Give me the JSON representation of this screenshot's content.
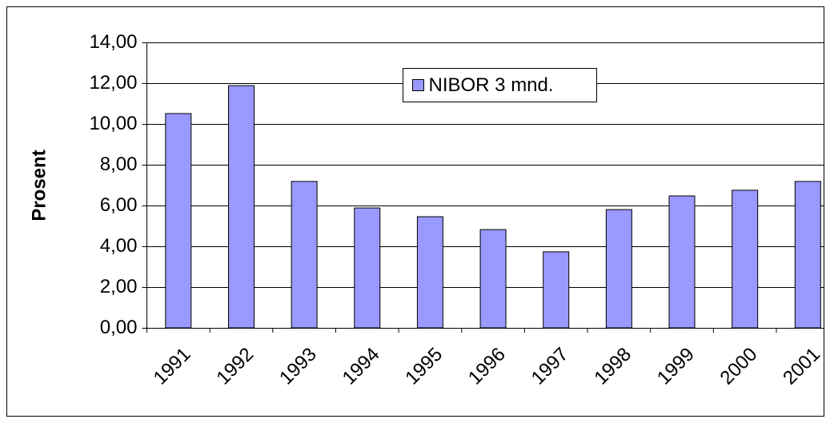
{
  "chart_data": {
    "type": "bar",
    "y_label": "Prosent",
    "categories": [
      "1991",
      "1992",
      "1993",
      "1994",
      "1995",
      "1996",
      "1997",
      "1998",
      "1999",
      "2000",
      "2001"
    ],
    "series": [
      {
        "name": "NIBOR 3 mnd.",
        "color": "#9999ff",
        "values": [
          10.51,
          11.88,
          7.18,
          5.88,
          5.45,
          4.82,
          3.73,
          5.8,
          6.47,
          6.75,
          7.18
        ]
      }
    ],
    "ylim": [
      0,
      14
    ],
    "yticks": [
      {
        "value": 0,
        "label": "0,00"
      },
      {
        "value": 2,
        "label": "2,00"
      },
      {
        "value": 4,
        "label": "4,00"
      },
      {
        "value": 6,
        "label": "6,00"
      },
      {
        "value": 8,
        "label": "8,00"
      },
      {
        "value": 10,
        "label": "10,00"
      },
      {
        "value": 12,
        "label": "12,00"
      },
      {
        "value": 14,
        "label": "14,00"
      }
    ],
    "grid": true
  }
}
